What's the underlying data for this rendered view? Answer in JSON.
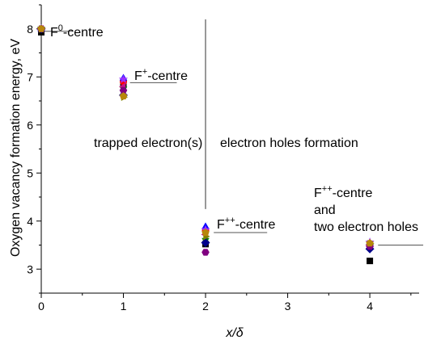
{
  "chart_data": {
    "type": "scatter",
    "title": "",
    "xlabel": "x/δ",
    "ylabel": "Oxygen vacancy formation energy, eV",
    "xlim": [
      0,
      4.6
    ],
    "ylim": [
      2.5,
      8.5
    ],
    "xticks": [
      0,
      1,
      2,
      3,
      4
    ],
    "yticks": [
      3,
      4,
      5,
      6,
      7,
      8
    ],
    "grid": false,
    "legend": "none",
    "series": [
      {
        "color": "#000000",
        "marker": "square",
        "points": [
          [
            0,
            7.93
          ],
          [
            1,
            6.85
          ],
          [
            2,
            3.52
          ],
          [
            4,
            3.17
          ]
        ]
      },
      {
        "color": "#ff0000",
        "marker": "circle",
        "points": [
          [
            0,
            8.0
          ],
          [
            1,
            6.9
          ],
          [
            2,
            3.8
          ],
          [
            4,
            3.5
          ]
        ]
      },
      {
        "color": "#0000ff",
        "marker": "triangle-up",
        "points": [
          [
            0,
            8.0
          ],
          [
            1,
            6.97
          ],
          [
            2,
            3.88
          ],
          [
            4,
            3.52
          ]
        ]
      },
      {
        "color": "#008000",
        "marker": "triangle-down",
        "points": [
          [
            0,
            8.0
          ],
          [
            1,
            6.75
          ],
          [
            2,
            3.6
          ],
          [
            4,
            3.48
          ]
        ]
      },
      {
        "color": "#00008b",
        "marker": "diamond",
        "points": [
          [
            0,
            8.0
          ],
          [
            1,
            6.62
          ],
          [
            2,
            3.55
          ],
          [
            4,
            3.42
          ]
        ]
      },
      {
        "color": "#c71585",
        "marker": "triangle-left",
        "points": [
          [
            0,
            8.0
          ],
          [
            1,
            6.8
          ],
          [
            2,
            3.72
          ],
          [
            4,
            3.5
          ]
        ]
      },
      {
        "color": "#808000",
        "marker": "triangle-right",
        "points": [
          [
            0,
            8.0
          ],
          [
            1,
            6.58
          ],
          [
            2,
            3.68
          ],
          [
            4,
            3.53
          ]
        ]
      },
      {
        "color": "#800080",
        "marker": "hexagon",
        "points": [
          [
            0,
            8.0
          ],
          [
            1,
            6.72
          ],
          [
            2,
            3.35
          ],
          [
            4,
            3.47
          ]
        ]
      },
      {
        "color": "#9b30ff",
        "marker": "star",
        "points": [
          [
            0,
            8.0
          ],
          [
            1,
            6.95
          ],
          [
            2,
            3.82
          ],
          [
            4,
            3.56
          ]
        ]
      },
      {
        "color": "#b8860b",
        "marker": "pentagon",
        "points": [
          [
            0,
            8.0
          ],
          [
            1,
            6.6
          ],
          [
            2,
            3.76
          ],
          [
            4,
            3.54
          ]
        ]
      }
    ],
    "divider_x": 2,
    "annotations": {
      "f0": {
        "base": "F",
        "sup": "0",
        "rest": "-centre",
        "x": 0,
        "y": 8.0
      },
      "fplus": {
        "base": "F",
        "sup": "+",
        "rest": "-centre",
        "x": 1.1,
        "y": 6.88
      },
      "fpp2": {
        "base": "F",
        "sup": "++",
        "rest": "-centre",
        "x": 2.1,
        "y": 3.75
      },
      "fpp4_line1": {
        "base": "F",
        "sup": "++",
        "rest": "-centre"
      },
      "fpp4_line2": "and",
      "fpp4_line3": "two electron holes",
      "trapped": "trapped electron(s)",
      "holes": "electron holes formation"
    }
  }
}
